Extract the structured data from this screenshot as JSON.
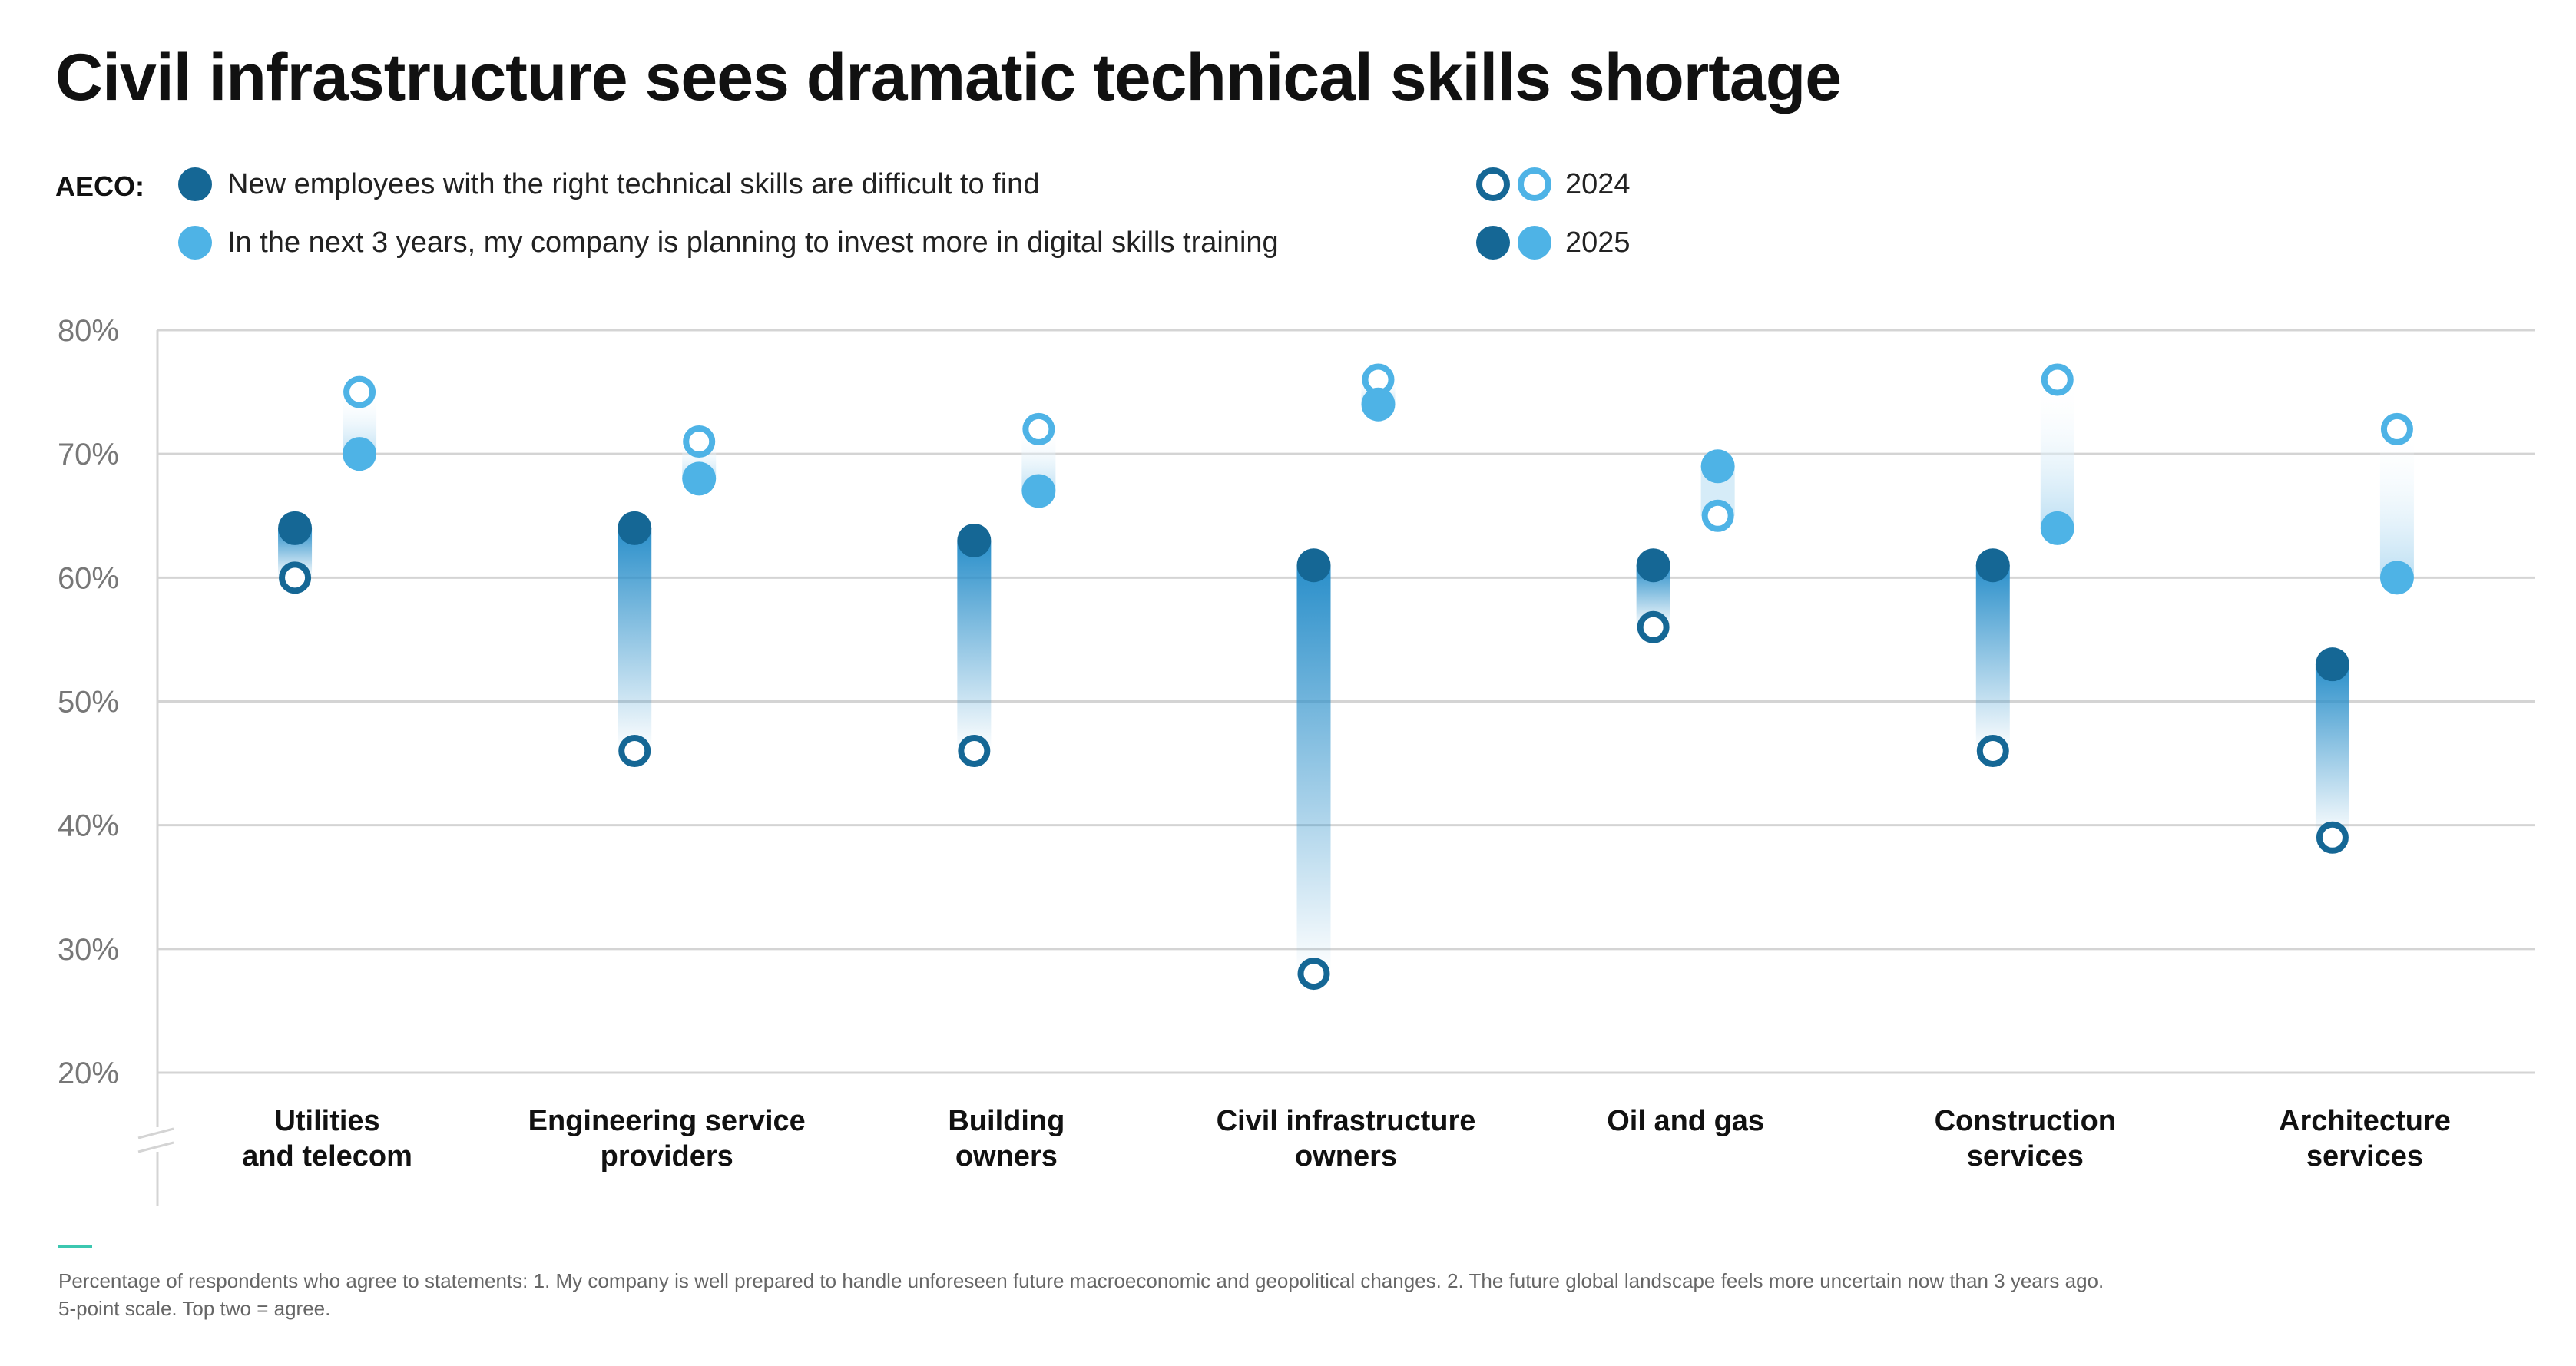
{
  "title": "Civil infrastructure sees dramatic technical skills shortage",
  "legend": {
    "prefix": "AECO:",
    "items": [
      "New employees with the right technical skills are difficult to find",
      "In the next 3 years, my company is planning to invest more in digital skills training"
    ],
    "years": [
      "2024",
      "2025"
    ]
  },
  "colors": {
    "dark": "#156795",
    "light": "#4eb3e6",
    "grid": "#d4d4d4",
    "axis_text": "#777777"
  },
  "chart_data": {
    "type": "dot-range",
    "y_axis": {
      "min": 20,
      "max": 80,
      "ticks": [
        80,
        70,
        60,
        50,
        40,
        30,
        20
      ],
      "tick_labels": [
        "80%",
        "70%",
        "60%",
        "50%",
        "40%",
        "30%",
        "20%"
      ],
      "axis_break": true
    },
    "categories": [
      [
        "Utilities",
        "and telecom"
      ],
      [
        "Engineering service",
        "providers"
      ],
      [
        "Building",
        "owners"
      ],
      [
        "Civil infrastructure",
        "owners"
      ],
      [
        "Oil and gas"
      ],
      [
        "Construction",
        "services"
      ],
      [
        "Architecture",
        "services"
      ]
    ],
    "series": [
      {
        "name": "New employees with the right technical skills are difficult to find",
        "values_2024": [
          60,
          46,
          46,
          28,
          56,
          46,
          39
        ],
        "values_2025": [
          64,
          64,
          63,
          61,
          61,
          61,
          53
        ]
      },
      {
        "name": "In the next 3 years, my company is planning to invest more in digital skills training",
        "values_2024": [
          75,
          71,
          72,
          76,
          65,
          76,
          72
        ],
        "values_2025": [
          70,
          68,
          67,
          74,
          69,
          64,
          60
        ]
      }
    ],
    "grid": true
  },
  "footnote": [
    "Percentage of respondents who agree to statements: 1. My company is well prepared to handle unforeseen future macroeconomic and geopolitical changes. 2. The future global landscape feels more uncertain now than 3 years ago.",
    "5-point scale. Top two = agree."
  ]
}
